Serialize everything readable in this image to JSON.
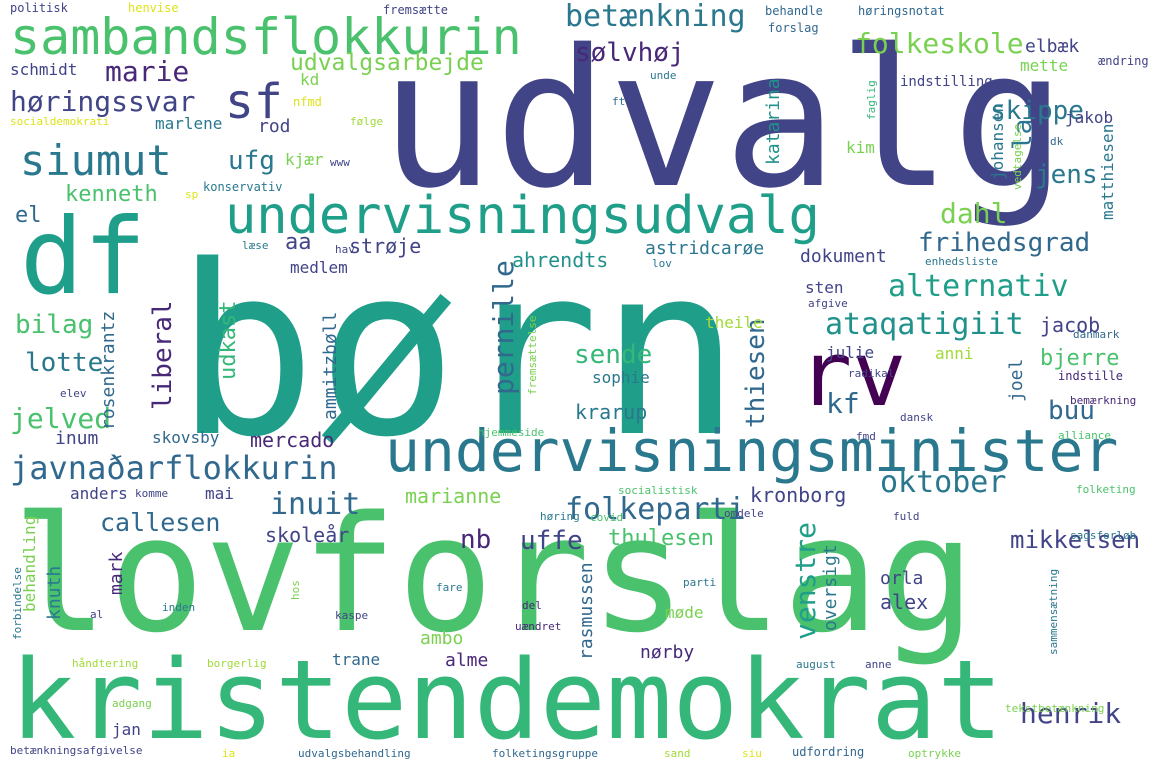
{
  "words": [
    {
      "text": "børn",
      "color": "#1f9e89"
    },
    {
      "text": "udvalg",
      "color": "#414487"
    },
    {
      "text": "lovforslag",
      "color": "#4ac16d"
    },
    {
      "text": "kristendemokrat",
      "color": "#35b779"
    },
    {
      "text": "df",
      "color": "#1f9e89"
    },
    {
      "text": "rv",
      "color": "#440154"
    },
    {
      "text": "undervisningsminister",
      "color": "#2a788e"
    },
    {
      "text": "undervisningsudvalg",
      "color": "#1f9e89"
    },
    {
      "text": "sambandsflokkurin",
      "color": "#4ac16d"
    },
    {
      "text": "siumut",
      "color": "#2a788e"
    },
    {
      "text": "sf",
      "color": "#414487"
    },
    {
      "text": "javnaðarflokkurin",
      "color": "#31688e"
    },
    {
      "text": "betænkning",
      "color": "#2a788e"
    },
    {
      "text": "folkeskole",
      "color": "#7ad151"
    },
    {
      "text": "høringssvar",
      "color": "#414487"
    },
    {
      "text": "marie",
      "color": "#482878"
    },
    {
      "text": "udvalgsarbejde",
      "color": "#7ad151"
    },
    {
      "text": "ufg",
      "color": "#2a788e"
    },
    {
      "text": "frihedsgrad",
      "color": "#31688e"
    },
    {
      "text": "alternativ",
      "color": "#1f9e89"
    },
    {
      "text": "ataqatigiit",
      "color": "#21918c"
    },
    {
      "text": "dahl",
      "color": "#7ad151"
    },
    {
      "text": "inuit",
      "color": "#31688e"
    },
    {
      "text": "folkeparti",
      "color": "#31688e"
    },
    {
      "text": "oktober",
      "color": "#2a788e"
    },
    {
      "text": "henrik",
      "color": "#414487"
    },
    {
      "text": "callesen",
      "color": "#31688e"
    },
    {
      "text": "kf",
      "color": "#31688e"
    },
    {
      "text": "pernille",
      "color": "#31688e"
    },
    {
      "text": "jelved",
      "color": "#4ac16d"
    },
    {
      "text": "bilag",
      "color": "#4ac16d"
    },
    {
      "text": "lotte",
      "color": "#2a788e"
    },
    {
      "text": "jens",
      "color": "#2a788e"
    },
    {
      "text": "skippe",
      "color": "#2a788e"
    },
    {
      "text": "sølvhøj",
      "color": "#482878"
    },
    {
      "text": "nb",
      "color": "#482878"
    },
    {
      "text": "uffe",
      "color": "#414487"
    },
    {
      "text": "kenneth",
      "color": "#4ac16d"
    },
    {
      "text": "el",
      "color": "#31688e"
    },
    {
      "text": "aa",
      "color": "#414487"
    },
    {
      "text": "venstre",
      "color": "#1f9e89"
    },
    {
      "text": "liberal",
      "color": "#482878"
    },
    {
      "text": "sende",
      "color": "#35b779"
    },
    {
      "text": "buu",
      "color": "#31688e"
    },
    {
      "text": "mikkelsen",
      "color": "#414487"
    },
    {
      "text": "thulesen",
      "color": "#4ac16d"
    },
    {
      "text": "kronborg",
      "color": "#414487"
    },
    {
      "text": "marianne",
      "color": "#7ad151"
    },
    {
      "text": "skoleår",
      "color": "#414487"
    },
    {
      "text": "mercado",
      "color": "#482878"
    },
    {
      "text": "krarup",
      "color": "#2a788e"
    },
    {
      "text": "thiesen",
      "color": "#31688e"
    },
    {
      "text": "ahrendts",
      "color": "#21918c"
    },
    {
      "text": "strøje",
      "color": "#414487"
    },
    {
      "text": "astridcarøe",
      "color": "#2a788e"
    },
    {
      "text": "dokument",
      "color": "#414487"
    },
    {
      "text": "bjerre",
      "color": "#4ac16d"
    },
    {
      "text": "jacob",
      "color": "#414487"
    },
    {
      "text": "orla",
      "color": "#414487"
    },
    {
      "text": "alex",
      "color": "#414487"
    },
    {
      "text": "møde",
      "color": "#7ad151"
    },
    {
      "text": "ambo",
      "color": "#7ad151"
    },
    {
      "text": "alme",
      "color": "#482878"
    },
    {
      "text": "trane",
      "color": "#31688e"
    },
    {
      "text": "nørby",
      "color": "#482878"
    },
    {
      "text": "oversigt",
      "color": "#2a788e"
    },
    {
      "text": "rasmussen",
      "color": "#31688e"
    },
    {
      "text": "mark",
      "color": "#482878"
    },
    {
      "text": "knuth",
      "color": "#2a788e"
    },
    {
      "text": "inum",
      "color": "#414487"
    },
    {
      "text": "udkast",
      "color": "#35b779"
    },
    {
      "text": "rosenkrantz",
      "color": "#31688e"
    },
    {
      "text": "ammitzbøll",
      "color": "#31688e"
    },
    {
      "text": "skovsby",
      "color": "#31688e"
    },
    {
      "text": "medlem",
      "color": "#414487"
    },
    {
      "text": "theile",
      "color": "#a0da39"
    },
    {
      "text": "sophie",
      "color": "#2a788e"
    },
    {
      "text": "julie",
      "color": "#414487"
    },
    {
      "text": "anni",
      "color": "#a0da39"
    },
    {
      "text": "sten",
      "color": "#414487"
    },
    {
      "text": "joel",
      "color": "#31688e"
    },
    {
      "text": "rod",
      "color": "#414487"
    },
    {
      "text": "marlene",
      "color": "#2a788e"
    },
    {
      "text": "schmidt",
      "color": "#414487"
    },
    {
      "text": "kd",
      "color": "#7ad151"
    },
    {
      "text": "la",
      "color": "#2a788e"
    },
    {
      "text": "elbæk",
      "color": "#414487"
    },
    {
      "text": "jakob",
      "color": "#414487"
    },
    {
      "text": "mette",
      "color": "#7ad151"
    },
    {
      "text": "katarina",
      "color": "#21918c"
    },
    {
      "text": "johansen",
      "color": "#2a788e"
    },
    {
      "text": "matthiesen",
      "color": "#2a788e"
    },
    {
      "text": "kim",
      "color": "#7ad151"
    },
    {
      "text": "kjær",
      "color": "#7ad151"
    },
    {
      "text": "indstilling",
      "color": "#414487"
    },
    {
      "text": "behandling",
      "color": "#7ad151"
    },
    {
      "text": "anders",
      "color": "#414487"
    },
    {
      "text": "mai",
      "color": "#414487"
    },
    {
      "text": "jan",
      "color": "#414487"
    },
    {
      "text": "politisk",
      "color": "#414487"
    },
    {
      "text": "henvise",
      "color": "#dde318"
    },
    {
      "text": "fremsætte",
      "color": "#414487"
    },
    {
      "text": "behandle",
      "color": "#31688e"
    },
    {
      "text": "høringsnotat",
      "color": "#31688e"
    },
    {
      "text": "forslag",
      "color": "#31688e"
    },
    {
      "text": "ændring",
      "color": "#414487"
    },
    {
      "text": "socialdemokrati",
      "color": "#dde318"
    },
    {
      "text": "nfmd",
      "color": "#dde318"
    },
    {
      "text": "følge",
      "color": "#a0da39"
    },
    {
      "text": "ft",
      "color": "#31688e"
    },
    {
      "text": "unde",
      "color": "#2a788e"
    },
    {
      "text": "faglig",
      "color": "#35b779"
    },
    {
      "text": "vedtagelse",
      "color": "#7ad151"
    },
    {
      "text": "dk",
      "color": "#31688e"
    },
    {
      "text": "www",
      "color": "#414487"
    },
    {
      "text": "konservativ",
      "color": "#2a788e"
    },
    {
      "text": "sp",
      "color": "#dde318"
    },
    {
      "text": "læse",
      "color": "#2a788e"
    },
    {
      "text": "hav",
      "color": "#414487"
    },
    {
      "text": "lov",
      "color": "#2a788e"
    },
    {
      "text": "enhedsliste",
      "color": "#2a788e"
    },
    {
      "text": "afgive",
      "color": "#414487"
    },
    {
      "text": "danmark",
      "color": "#31688e"
    },
    {
      "text": "fremsættelse",
      "color": "#7ad151"
    },
    {
      "text": "radikal",
      "color": "#414487"
    },
    {
      "text": "indstille",
      "color": "#482878"
    },
    {
      "text": "bemærkning",
      "color": "#482878"
    },
    {
      "text": "elev",
      "color": "#414487"
    },
    {
      "text": "hjemmeside",
      "color": "#4ac16d"
    },
    {
      "text": "fmd",
      "color": "#414487"
    },
    {
      "text": "dansk",
      "color": "#414487"
    },
    {
      "text": "alliance",
      "color": "#4ac16d"
    },
    {
      "text": "komme",
      "color": "#414487"
    },
    {
      "text": "socialistisk",
      "color": "#4ac16d"
    },
    {
      "text": "omdele",
      "color": "#414487"
    },
    {
      "text": "folketing",
      "color": "#4ac16d"
    },
    {
      "text": "høring",
      "color": "#2a788e"
    },
    {
      "text": "covid",
      "color": "#4ac16d"
    },
    {
      "text": "fuld",
      "color": "#414487"
    },
    {
      "text": "sagsforløb",
      "color": "#2a788e"
    },
    {
      "text": "forbindelse",
      "color": "#2a788e"
    },
    {
      "text": "hos",
      "color": "#7ad151"
    },
    {
      "text": "fare",
      "color": "#2a788e"
    },
    {
      "text": "parti",
      "color": "#2a788e"
    },
    {
      "text": "al",
      "color": "#414487"
    },
    {
      "text": "inden",
      "color": "#2a788e"
    },
    {
      "text": "kaspe",
      "color": "#414487"
    },
    {
      "text": "del",
      "color": "#482878"
    },
    {
      "text": "uændret",
      "color": "#482878"
    },
    {
      "text": "sammensætning",
      "color": "#2a788e"
    },
    {
      "text": "håndtering",
      "color": "#a0da39"
    },
    {
      "text": "borgerlig",
      "color": "#a0da39"
    },
    {
      "text": "august",
      "color": "#2a788e"
    },
    {
      "text": "anne",
      "color": "#414487"
    },
    {
      "text": "adgang",
      "color": "#7ad151"
    },
    {
      "text": "tekstbetænkning",
      "color": "#7ad151"
    },
    {
      "text": "betænkningsafgivelse",
      "color": "#414487"
    },
    {
      "text": "ia",
      "color": "#dde318"
    },
    {
      "text": "udvalgsbehandling",
      "color": "#31688e"
    },
    {
      "text": "folketingsgruppe",
      "color": "#31688e"
    },
    {
      "text": "sand",
      "color": "#a0da39"
    },
    {
      "text": "siu",
      "color": "#dde318"
    },
    {
      "text": "udfordring",
      "color": "#31688e"
    },
    {
      "text": "optrykke",
      "color": "#7ad151"
    }
  ]
}
